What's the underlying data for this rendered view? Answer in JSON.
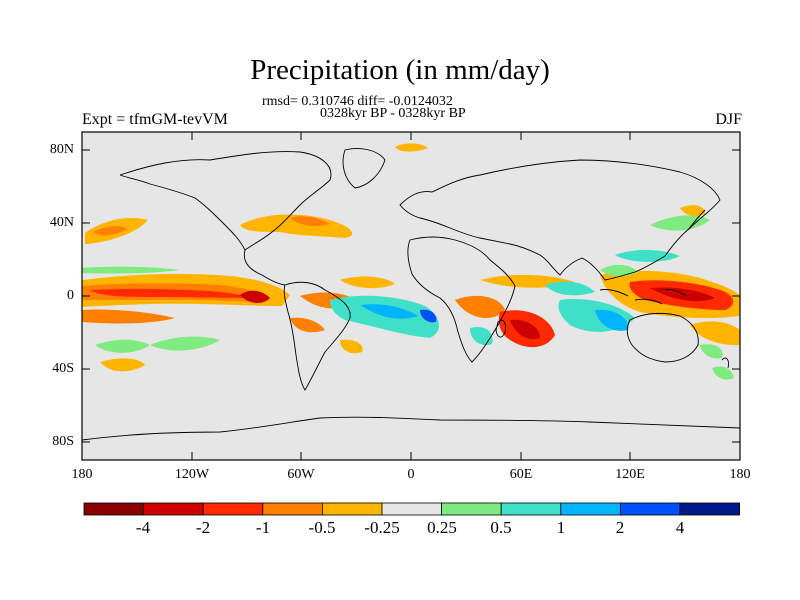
{
  "header": {
    "title": "Precipitation (in mm/day)",
    "stats_line": "rmsd= 0.310746 diff= -0.0124032",
    "period_line": "0328kyr BP - 0328kyr BP",
    "experiment_label": "Expt = tfmGM-tevVM",
    "season_label": "DJF"
  },
  "axes": {
    "y_ticks": [
      "80N",
      "40N",
      "0",
      "40S",
      "80S"
    ],
    "x_ticks": [
      "180",
      "120W",
      "60W",
      "0",
      "60E",
      "120E",
      "180"
    ]
  },
  "colorbar": {
    "labels": [
      "-4",
      "-2",
      "-1",
      "-0.5",
      "-0.25",
      "0.25",
      "0.5",
      "1",
      "2",
      "4"
    ],
    "colors": [
      "#8b0000",
      "#cd0000",
      "#ff2a00",
      "#ff7f00",
      "#ffb400",
      "#e6e6e6",
      "#7fea7f",
      "#40e0c8",
      "#00b4ff",
      "#0050ff",
      "#001a8c"
    ]
  },
  "map_colors": {
    "background": "#e6e6e6",
    "coastline": "#000000"
  }
}
